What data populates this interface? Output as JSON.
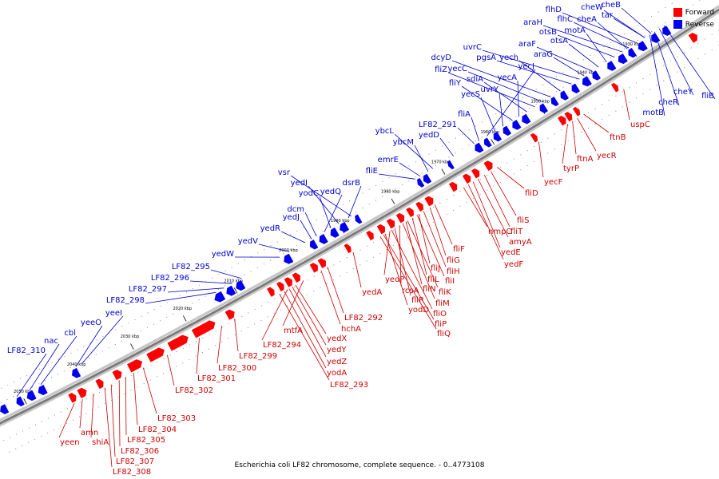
{
  "legend": {
    "forward": "Forward",
    "reverse": "Reverse"
  },
  "colors": {
    "forward": "#ff0000",
    "reverse": "#0000ee",
    "forward_label": "#cc0000",
    "reverse_label": "#0000cc",
    "backbone": "#bbbbbb"
  },
  "caption": "Escherichia coli LF82 chromosome, complete sequence. - 0..4773108",
  "ticks": [
    "1930 kbp",
    "1940 kbp",
    "1950 kbp",
    "1960 kbp",
    "1970 kbp",
    "1980 kbp",
    "1990 kbp",
    "2000 kbp",
    "2010 kbp",
    "2020 kbp",
    "2030 kbp",
    "2040 kbp",
    "2050 kbp"
  ],
  "reverse_genes": [
    "cheB",
    "cheW",
    "tar",
    "flhD",
    "flhC",
    "cheA",
    "araH",
    "otsB",
    "motA",
    "otsA",
    "araF",
    "araG",
    "uvrC",
    "pgsA",
    "yech",
    "dcyD",
    "yecC",
    "fliZ",
    "sdiA",
    "yecA",
    "fliY",
    "uvrY",
    "yecS",
    "yecJ",
    "fliA",
    "LF82_291",
    "yedD",
    "ybcL",
    "ybcM",
    "emrE",
    "fliE",
    "vsr",
    "dsrB",
    "yedI",
    "yodC",
    "yedQ",
    "dcm",
    "yedJ",
    "yedR",
    "yedV",
    "yedW",
    "LF82_295",
    "LF82_296",
    "LF82_297",
    "LF82_298",
    "yeeI",
    "yeeO",
    "cbl",
    "nac",
    "LF82_310",
    "cheY",
    "fliB",
    "cheR",
    "motB"
  ],
  "forward_genes": [
    "uspC",
    "ftnB",
    "yecR",
    "ftnA",
    "tyrP",
    "yecF",
    "fliD",
    "fliS",
    "fliT",
    "amyA",
    "nmpC",
    "yedE",
    "yedF",
    "fliF",
    "fliG",
    "fliH",
    "fliJ",
    "fliI",
    "fliL",
    "fliK",
    "fliN",
    "fliM",
    "rcsA",
    "fliR",
    "fliO",
    "yedP",
    "yodD",
    "fliP",
    "fliQ",
    "yedA",
    "LF82_292",
    "hchA",
    "mtfA",
    "yedX",
    "LF82_294",
    "yedY",
    "yedZ",
    "yodA",
    "LF82_293",
    "LF82_299",
    "LF82_300",
    "LF82_301",
    "LF82_302",
    "LF82_303",
    "LF82_304",
    "LF82_305",
    "LF82_306",
    "LF82_307",
    "LF82_308",
    "shiA",
    "amn",
    "yeen"
  ]
}
